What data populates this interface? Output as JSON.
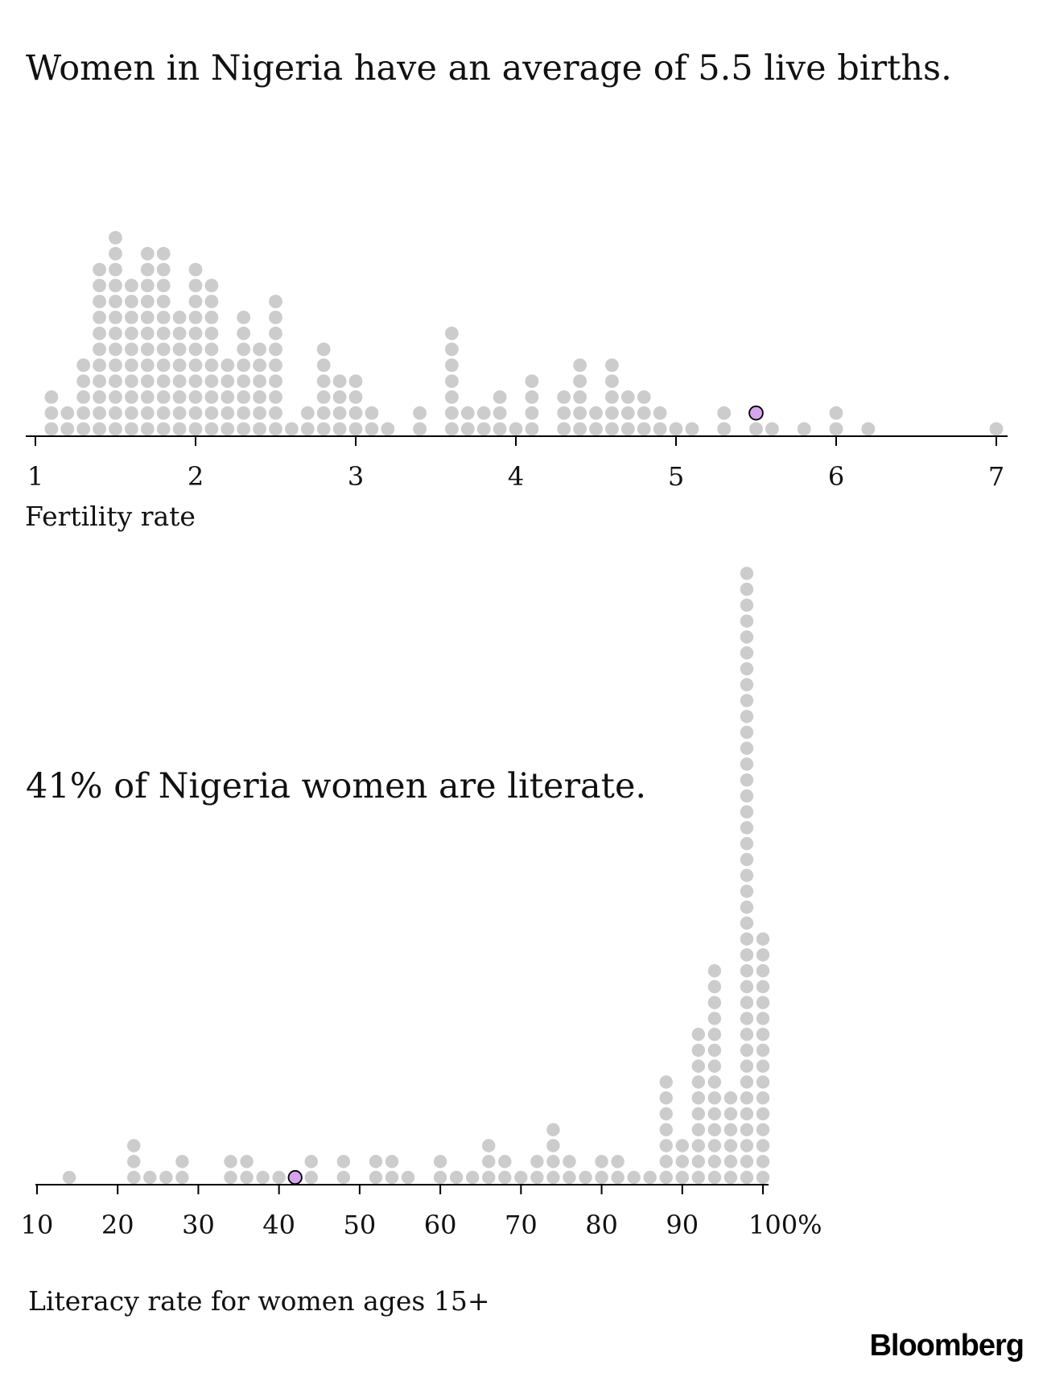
{
  "titles": {
    "fertility": "Women in Nigeria have an average of 5.5 live births.",
    "literacy": "41% of Nigeria women are literate."
  },
  "logo": "Bloomberg",
  "colors": {
    "dot": "#cccccc",
    "highlight": "#d6a4ec",
    "highlight_stroke": "#000000",
    "axis": "#000000"
  },
  "chart_data": [
    {
      "type": "scatter",
      "subtype": "dot-plot",
      "xlabel": "Fertility rate",
      "xlim": [
        1,
        7
      ],
      "xticks": [
        1,
        2,
        3,
        4,
        5,
        6,
        7
      ],
      "xtick_labels": [
        "1",
        "2",
        "3",
        "4",
        "5",
        "6",
        "7"
      ],
      "bins": [
        {
          "x": 1.1,
          "count": 3
        },
        {
          "x": 1.2,
          "count": 2
        },
        {
          "x": 1.3,
          "count": 5
        },
        {
          "x": 1.4,
          "count": 11
        },
        {
          "x": 1.5,
          "count": 13
        },
        {
          "x": 1.6,
          "count": 10
        },
        {
          "x": 1.7,
          "count": 12
        },
        {
          "x": 1.8,
          "count": 12
        },
        {
          "x": 1.9,
          "count": 8
        },
        {
          "x": 2.0,
          "count": 11
        },
        {
          "x": 2.1,
          "count": 10
        },
        {
          "x": 2.2,
          "count": 5
        },
        {
          "x": 2.3,
          "count": 8
        },
        {
          "x": 2.4,
          "count": 6
        },
        {
          "x": 2.5,
          "count": 9
        },
        {
          "x": 2.6,
          "count": 1
        },
        {
          "x": 2.7,
          "count": 2
        },
        {
          "x": 2.8,
          "count": 6
        },
        {
          "x": 2.9,
          "count": 4
        },
        {
          "x": 3.0,
          "count": 4
        },
        {
          "x": 3.1,
          "count": 2
        },
        {
          "x": 3.2,
          "count": 1
        },
        {
          "x": 3.4,
          "count": 2
        },
        {
          "x": 3.6,
          "count": 7
        },
        {
          "x": 3.7,
          "count": 2
        },
        {
          "x": 3.8,
          "count": 2
        },
        {
          "x": 3.9,
          "count": 3
        },
        {
          "x": 4.0,
          "count": 1
        },
        {
          "x": 4.1,
          "count": 4
        },
        {
          "x": 4.3,
          "count": 3
        },
        {
          "x": 4.4,
          "count": 5
        },
        {
          "x": 4.5,
          "count": 2
        },
        {
          "x": 4.6,
          "count": 5
        },
        {
          "x": 4.7,
          "count": 3
        },
        {
          "x": 4.8,
          "count": 3
        },
        {
          "x": 4.9,
          "count": 2
        },
        {
          "x": 5.0,
          "count": 1
        },
        {
          "x": 5.1,
          "count": 1
        },
        {
          "x": 5.3,
          "count": 2
        },
        {
          "x": 5.5,
          "count": 2
        },
        {
          "x": 5.6,
          "count": 1
        },
        {
          "x": 5.8,
          "count": 1
        },
        {
          "x": 6.0,
          "count": 2
        },
        {
          "x": 6.2,
          "count": 1
        },
        {
          "x": 7.0,
          "count": 1
        }
      ],
      "highlight": {
        "x": 5.5,
        "level": 2
      }
    },
    {
      "type": "scatter",
      "subtype": "dot-plot",
      "xlabel": "Literacy rate for women ages 15+",
      "xlim": [
        10,
        100
      ],
      "xticks": [
        10,
        20,
        30,
        40,
        50,
        60,
        70,
        80,
        90,
        100
      ],
      "xtick_labels": [
        "10",
        "20",
        "30",
        "40",
        "50",
        "60",
        "70",
        "80",
        "90",
        "100%"
      ],
      "bins": [
        {
          "x": 14,
          "count": 1
        },
        {
          "x": 22,
          "count": 3
        },
        {
          "x": 24,
          "count": 1
        },
        {
          "x": 26,
          "count": 1
        },
        {
          "x": 28,
          "count": 2
        },
        {
          "x": 34,
          "count": 2
        },
        {
          "x": 36,
          "count": 2
        },
        {
          "x": 38,
          "count": 1
        },
        {
          "x": 40,
          "count": 1
        },
        {
          "x": 42,
          "count": 1
        },
        {
          "x": 44,
          "count": 2
        },
        {
          "x": 48,
          "count": 2
        },
        {
          "x": 52,
          "count": 2
        },
        {
          "x": 54,
          "count": 2
        },
        {
          "x": 56,
          "count": 1
        },
        {
          "x": 60,
          "count": 2
        },
        {
          "x": 62,
          "count": 1
        },
        {
          "x": 64,
          "count": 1
        },
        {
          "x": 66,
          "count": 3
        },
        {
          "x": 68,
          "count": 2
        },
        {
          "x": 70,
          "count": 1
        },
        {
          "x": 72,
          "count": 2
        },
        {
          "x": 74,
          "count": 4
        },
        {
          "x": 76,
          "count": 2
        },
        {
          "x": 78,
          "count": 1
        },
        {
          "x": 80,
          "count": 2
        },
        {
          "x": 82,
          "count": 2
        },
        {
          "x": 84,
          "count": 1
        },
        {
          "x": 86,
          "count": 1
        },
        {
          "x": 88,
          "count": 7
        },
        {
          "x": 90,
          "count": 3
        },
        {
          "x": 92,
          "count": 10
        },
        {
          "x": 94,
          "count": 14
        },
        {
          "x": 96,
          "count": 6
        },
        {
          "x": 98,
          "count": 39
        },
        {
          "x": 100,
          "count": 16
        }
      ],
      "highlight": {
        "x": 42,
        "level": 1
      }
    }
  ]
}
